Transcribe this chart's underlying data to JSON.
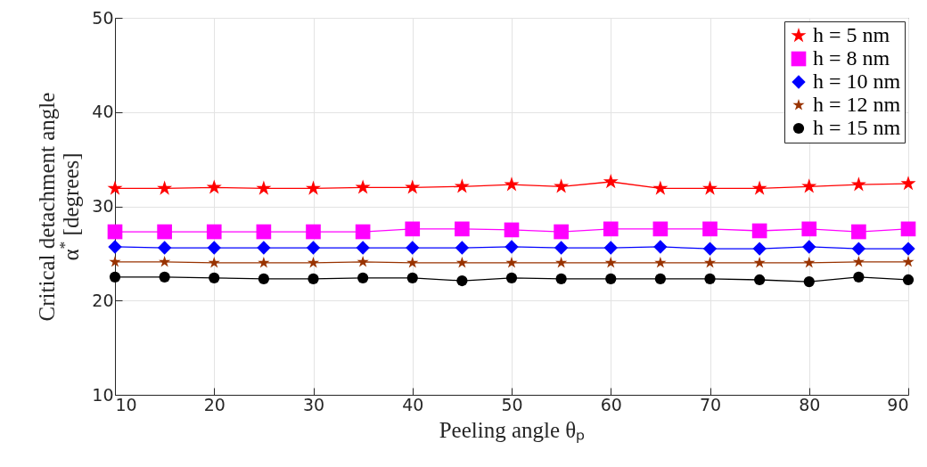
{
  "chart_data": {
    "type": "line",
    "xlabel": "Peeling angle θₚ",
    "ylabel": "Critical detachment angle\nα$^{*}$ [degrees]",
    "x": [
      10,
      15,
      20,
      25,
      30,
      35,
      40,
      45,
      50,
      55,
      60,
      65,
      70,
      75,
      80,
      85,
      90
    ],
    "xlim": [
      10,
      90
    ],
    "xticks": [
      10,
      20,
      30,
      40,
      50,
      60,
      70,
      80,
      90
    ],
    "ylim": [
      10,
      50
    ],
    "yticks": [
      10,
      20,
      30,
      40,
      50
    ],
    "grid": true,
    "legend": "top right",
    "line_style": "solid",
    "series": [
      {
        "name": "h = 5 nm",
        "color": "#ff0000",
        "marker": "star",
        "values": [
          31.9,
          31.9,
          32.0,
          31.9,
          31.9,
          32.0,
          32.0,
          32.1,
          32.3,
          32.1,
          32.6,
          31.9,
          31.9,
          31.9,
          32.1,
          32.3,
          32.4
        ]
      },
      {
        "name": "h = 8 nm",
        "color": "#ff00ff",
        "marker": "square",
        "values": [
          27.3,
          27.3,
          27.3,
          27.3,
          27.3,
          27.3,
          27.6,
          27.6,
          27.5,
          27.3,
          27.6,
          27.6,
          27.6,
          27.4,
          27.6,
          27.3,
          27.6
        ]
      },
      {
        "name": "h = 10 nm",
        "color": "#0000ff",
        "marker": "diamond",
        "values": [
          25.7,
          25.6,
          25.6,
          25.6,
          25.6,
          25.6,
          25.6,
          25.6,
          25.7,
          25.6,
          25.6,
          25.7,
          25.5,
          25.5,
          25.7,
          25.5,
          25.5
        ]
      },
      {
        "name": "h = 12 nm",
        "color": "#993300",
        "marker": "star",
        "values": [
          24.1,
          24.1,
          24.0,
          24.0,
          24.0,
          24.1,
          24.0,
          24.0,
          24.0,
          24.0,
          24.0,
          24.0,
          24.0,
          24.0,
          24.0,
          24.1,
          24.1
        ]
      },
      {
        "name": "h = 15 nm",
        "color": "#000000",
        "marker": "circle",
        "values": [
          22.5,
          22.5,
          22.4,
          22.3,
          22.3,
          22.4,
          22.4,
          22.1,
          22.4,
          22.3,
          22.3,
          22.3,
          22.3,
          22.2,
          22.0,
          22.5,
          22.2
        ]
      }
    ]
  }
}
